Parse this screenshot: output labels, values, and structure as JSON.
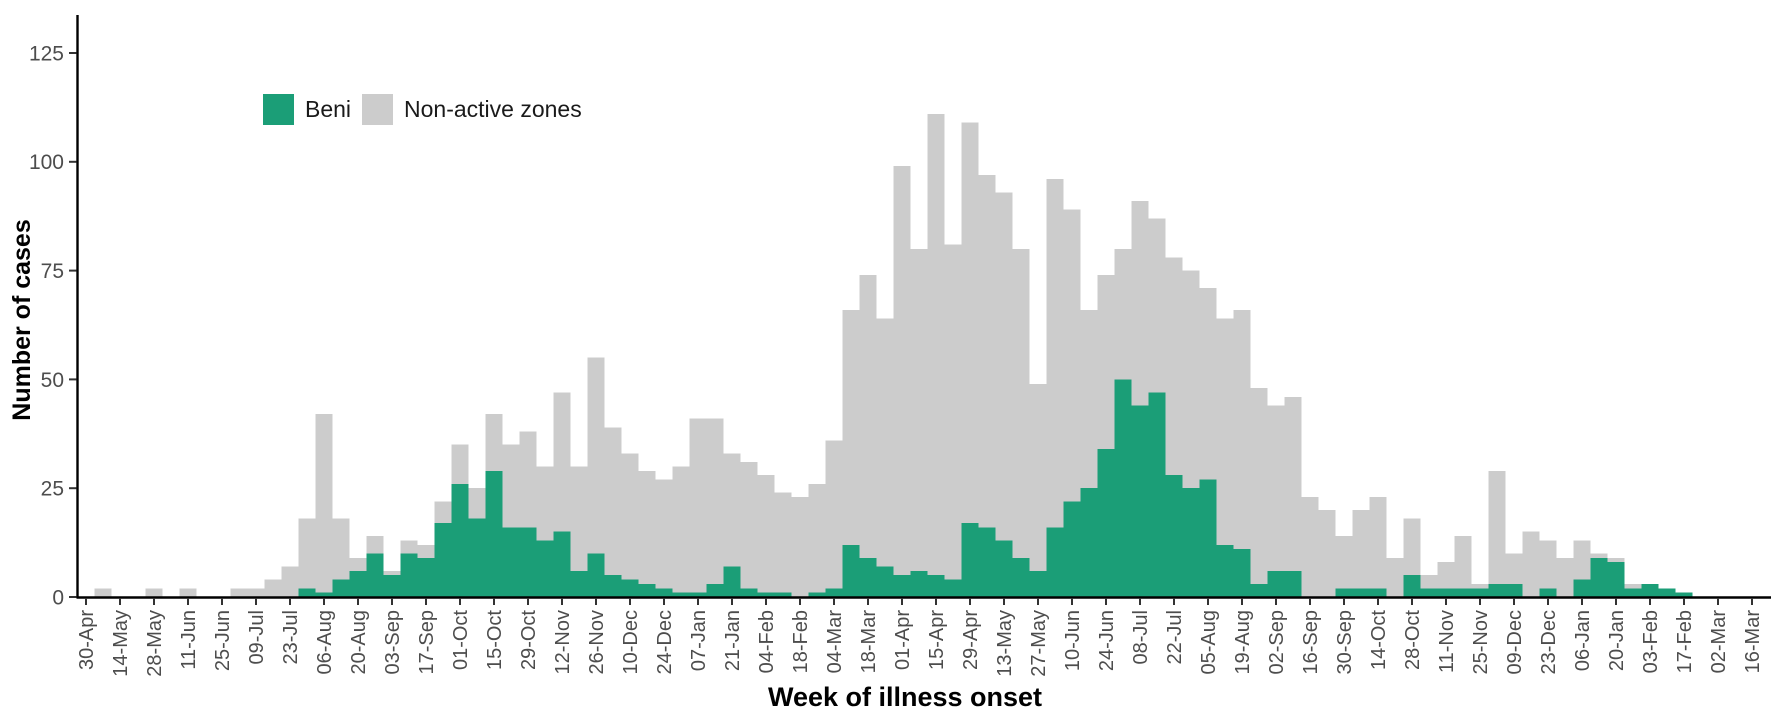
{
  "chart_data": {
    "type": "bar",
    "stacked": true,
    "title": "",
    "xlabel": "Week of illness onset",
    "ylabel": "Number of cases",
    "ylim": [
      0,
      125
    ],
    "yticks": [
      0,
      25,
      50,
      75,
      100,
      125
    ],
    "x_tick_every": 2,
    "grid": false,
    "legend_position": "top-left-inside",
    "axis_text_color": "#4d4d4d",
    "axis_line_color": "#000000",
    "categories": [
      "30-Apr",
      "07-May",
      "14-May",
      "21-May",
      "28-May",
      "04-Jun",
      "11-Jun",
      "18-Jun",
      "25-Jun",
      "02-Jul",
      "09-Jul",
      "16-Jul",
      "23-Jul",
      "30-Jul",
      "06-Aug",
      "13-Aug",
      "20-Aug",
      "27-Aug",
      "03-Sep",
      "10-Sep",
      "17-Sep",
      "24-Sep",
      "01-Oct",
      "08-Oct",
      "15-Oct",
      "22-Oct",
      "29-Oct",
      "05-Nov",
      "12-Nov",
      "19-Nov",
      "26-Nov",
      "03-Dec",
      "10-Dec",
      "17-Dec",
      "24-Dec",
      "31-Dec",
      "07-Jan",
      "14-Jan",
      "21-Jan",
      "28-Jan",
      "04-Feb",
      "11-Feb",
      "18-Feb",
      "25-Feb",
      "04-Mar",
      "11-Mar",
      "18-Mar",
      "25-Mar",
      "01-Apr",
      "08-Apr",
      "15-Apr",
      "22-Apr",
      "29-Apr",
      "06-May",
      "13-May",
      "20-May",
      "27-May",
      "03-Jun",
      "10-Jun",
      "17-Jun",
      "24-Jun",
      "01-Jul",
      "08-Jul",
      "15-Jul",
      "22-Jul",
      "29-Jul",
      "05-Aug",
      "12-Aug",
      "19-Aug",
      "26-Aug",
      "02-Sep",
      "09-Sep",
      "16-Sep",
      "23-Sep",
      "30-Sep",
      "07-Oct",
      "14-Oct",
      "21-Oct",
      "28-Oct",
      "04-Nov",
      "11-Nov",
      "18-Nov",
      "25-Nov",
      "02-Dec",
      "09-Dec",
      "16-Dec",
      "23-Dec",
      "30-Dec",
      "06-Jan",
      "13-Jan",
      "20-Jan",
      "27-Jan",
      "03-Feb",
      "10-Feb",
      "17-Feb",
      "24-Feb",
      "02-Mar",
      "09-Mar",
      "16-Mar"
    ],
    "series": [
      {
        "name": "Beni",
        "color": "#1b9e77",
        "values": [
          0,
          0,
          0,
          0,
          0,
          0,
          0,
          0,
          0,
          0,
          0,
          0,
          0,
          2,
          1,
          4,
          6,
          10,
          5,
          10,
          9,
          17,
          26,
          18,
          29,
          16,
          16,
          13,
          15,
          6,
          10,
          5,
          4,
          3,
          2,
          1,
          1,
          3,
          7,
          2,
          1,
          1,
          0,
          1,
          2,
          12,
          9,
          7,
          5,
          6,
          5,
          4,
          17,
          16,
          13,
          9,
          6,
          16,
          22,
          25,
          34,
          50,
          44,
          47,
          28,
          25,
          27,
          12,
          11,
          3,
          6,
          6,
          0,
          0,
          2,
          2,
          2,
          0,
          5,
          2,
          2,
          2,
          2,
          3,
          3,
          0,
          2,
          0,
          4,
          9,
          8,
          2,
          3,
          2,
          1,
          0,
          0,
          0,
          0
        ]
      },
      {
        "name": "Non-active zones",
        "color": "#cccccc",
        "values": [
          0,
          2,
          0,
          0,
          2,
          0,
          2,
          0,
          0,
          2,
          2,
          4,
          7,
          16,
          41,
          14,
          3,
          4,
          1,
          3,
          3,
          5,
          9,
          7,
          13,
          19,
          22,
          17,
          32,
          24,
          45,
          34,
          29,
          26,
          25,
          29,
          40,
          38,
          26,
          29,
          27,
          23,
          23,
          25,
          34,
          54,
          65,
          57,
          94,
          74,
          106,
          77,
          92,
          81,
          80,
          71,
          43,
          80,
          67,
          41,
          40,
          30,
          47,
          40,
          50,
          50,
          44,
          52,
          55,
          45,
          38,
          40,
          23,
          20,
          12,
          18,
          21,
          9,
          13,
          3,
          6,
          12,
          1,
          26,
          7,
          15,
          11,
          9,
          9,
          1,
          1,
          1,
          0,
          0,
          0,
          0,
          0,
          0,
          0
        ]
      }
    ]
  }
}
